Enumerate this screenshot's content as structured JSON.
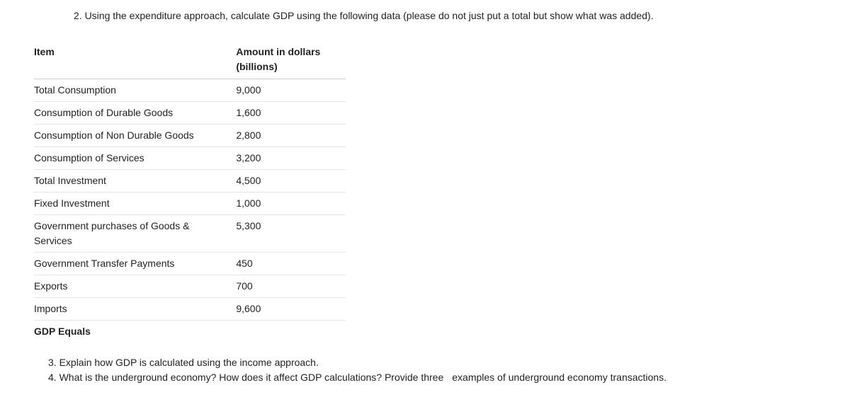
{
  "question2": {
    "text": "2. Using the expenditure approach, calculate GDP using the following data (please do not just put a total but show what was added)."
  },
  "table": {
    "header": {
      "item": "Item",
      "amount_line1": "Amount in dollars",
      "amount_line2": "(billions)"
    },
    "rows": [
      {
        "item": "Total Consumption",
        "amount": "9,000"
      },
      {
        "item": "Consumption of Durable Goods",
        "amount": "1,600"
      },
      {
        "item": "Consumption of Non Durable Goods",
        "amount": "2,800"
      },
      {
        "item": "Consumption of Services",
        "amount": "3,200"
      },
      {
        "item": "Total Investment",
        "amount": "4,500"
      },
      {
        "item": "Fixed Investment",
        "amount": "1,000"
      },
      {
        "item": "Government purchases of Goods & Services",
        "amount": "5,300"
      },
      {
        "item": "Government Transfer Payments",
        "amount": "450"
      },
      {
        "item": "Exports",
        "amount": "700"
      },
      {
        "item": "Imports",
        "amount": "9,600"
      }
    ],
    "footer": {
      "label": "GDP Equals",
      "value": ""
    }
  },
  "question3": {
    "text": "3. Explain how GDP is calculated using the income approach."
  },
  "question4": {
    "part1": "4.  What is the underground economy? How does it affect GDP calculations? Provide three",
    "part2": "examples of underground economy transactions."
  }
}
